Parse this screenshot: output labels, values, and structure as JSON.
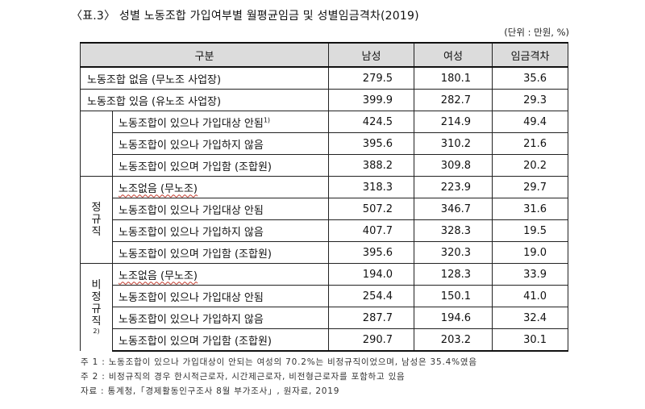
{
  "title": "〈표.3〉 성별 노동조합 가입여부별 월평균임금 및 성별임금격차(2019)",
  "unit": "(단위 : 만원, %)",
  "columns": [
    "구분",
    "남성",
    "여성",
    "임금격차"
  ],
  "groups": {
    "regular": "정규직",
    "nonregular_chars": [
      "비",
      "정",
      "규",
      "직"
    ],
    "nonregular_sup": "2)"
  },
  "rows": [
    {
      "label": "노동조합 없음 (무노조 사업장)",
      "male": "279.5",
      "female": "180.1",
      "gap": "35.6"
    },
    {
      "label": "노동조합 있음 (유노조 사업장)",
      "male": "399.9",
      "female": "282.7",
      "gap": "29.3"
    },
    {
      "label": "노동조합이 있으나 가입대상 안됨",
      "sup": "1)",
      "male": "424.5",
      "female": "214.9",
      "gap": "49.4"
    },
    {
      "label": "노동조합이 있으나 가입하지 않음",
      "male": "395.6",
      "female": "310.2",
      "gap": "21.6"
    },
    {
      "label": "노동조합이 있으며 가입함 (조합원)",
      "male": "388.2",
      "female": "309.8",
      "gap": "20.2"
    },
    {
      "label": "노조없음 (무노조)",
      "male": "318.3",
      "female": "223.9",
      "gap": "29.7"
    },
    {
      "label": "노동조합이 있으나 가입대상 안됨",
      "male": "507.2",
      "female": "346.7",
      "gap": "31.6"
    },
    {
      "label": "노동조합이 있으나 가입하지 않음",
      "male": "407.7",
      "female": "328.3",
      "gap": "19.5"
    },
    {
      "label": "노동조합이 있으며 가입함 (조합원)",
      "male": "395.6",
      "female": "320.3",
      "gap": "19.0"
    },
    {
      "label": "노조없음 (무노조)",
      "male": "194.0",
      "female": "128.3",
      "gap": "33.9"
    },
    {
      "label": "노동조합이 있으나 가입대상 안됨",
      "male": "254.4",
      "female": "150.1",
      "gap": "41.0"
    },
    {
      "label": "노동조합이 있으나 가입하지 않음",
      "male": "287.7",
      "female": "194.6",
      "gap": "32.4"
    },
    {
      "label": "노동조합이 있으며 가입함 (조합원)",
      "male": "290.7",
      "female": "203.2",
      "gap": "30.1"
    }
  ],
  "notes": [
    "주 1 : 노동조합이 있으나 가입대상이 안되는 여성의 70.2%는 비정규직이었으며, 남성은 35.4%였음",
    "주 2 : 비정규직의 경우 한시적근로자, 시간제근로자, 비전형근로자를 포함하고 있음",
    "자료 : 통계청,「경제활동인구조사 8월 부가조사」, 원자료, 2019"
  ]
}
